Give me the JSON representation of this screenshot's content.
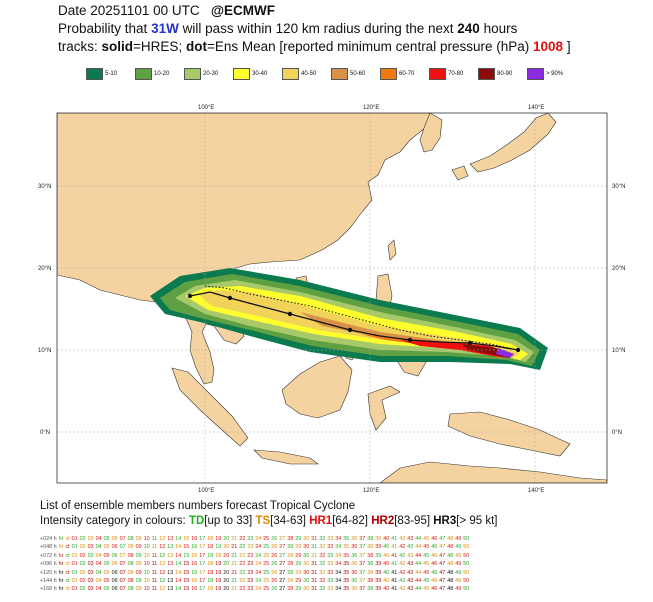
{
  "header": {
    "line1_date": "Date 20251101 00 UTC",
    "line1_org": "@ECMWF",
    "line2_pre": "Probability that",
    "storm_id": "31W",
    "line2_mid": "will pass within 120 km radius during the next",
    "hours": "240",
    "line2_post": "hours",
    "line3_a": "tracks:",
    "line3_solid": "solid",
    "line3_b": "=HRES;",
    "line3_dot": "dot",
    "line3_c": "=Ens Mean [reported minimum central pressure (hPa)",
    "pressure": "1008",
    "line3_d": "]"
  },
  "legend": [
    {
      "label": "5-10",
      "color": "#0b7a4e"
    },
    {
      "label": "10-20",
      "color": "#5ea042"
    },
    {
      "label": "20-30",
      "color": "#a8c96a"
    },
    {
      "label": "30-40",
      "color": "#ffff2e"
    },
    {
      "label": "40-50",
      "color": "#f2d35a"
    },
    {
      "label": "50-60",
      "color": "#d9914a"
    },
    {
      "label": "60-70",
      "color": "#f07a10"
    },
    {
      "label": "70-80",
      "color": "#f01010"
    },
    {
      "label": "80-90",
      "color": "#8b0b0b"
    },
    {
      "label": "> 90%",
      "color": "#8a2be2"
    }
  ],
  "map": {
    "lon_labels": [
      "100°E",
      "120°E",
      "140°E"
    ],
    "lat_labels": [
      "30°N",
      "20°N",
      "10°N",
      "0°N"
    ],
    "colors": {
      "land": "#f5d3a1",
      "sea": "#ffffff",
      "grid": "#aaaaaa",
      "coast": "#333333"
    }
  },
  "footer": {
    "title": "List of ensemble members numbers forecast Tropical Cyclone",
    "intensity_prefix": "Intensity category in colours:",
    "td": "TD",
    "td_range": "[up to 33]",
    "ts": "TS",
    "ts_range": "[34-63]",
    "hr1": "HR1",
    "hr1_range": "[64-82]",
    "hr2": "HR2",
    "hr2_range": "[83-95]",
    "hr3": "HR3",
    "hr3_range": "[> 95 kt]"
  },
  "members": {
    "rows": [
      "+024 h",
      "+048 h",
      "+072 h",
      "+096 h",
      "+120 h",
      "+144 h",
      "+168 h"
    ],
    "prefix": [
      "hr",
      "ct"
    ],
    "numbers": [
      "01",
      "02",
      "03",
      "04",
      "05",
      "06",
      "07",
      "08",
      "09",
      "10",
      "11",
      "12",
      "13",
      "14",
      "15",
      "16",
      "17",
      "18",
      "19",
      "20",
      "21",
      "22",
      "23",
      "24",
      "25",
      "26",
      "27",
      "28",
      "29",
      "30",
      "31",
      "32",
      "33",
      "34",
      "35",
      "36",
      "37",
      "38",
      "39",
      "40",
      "41",
      "42",
      "43",
      "44",
      "45",
      "46",
      "47",
      "48",
      "49",
      "50"
    ]
  }
}
